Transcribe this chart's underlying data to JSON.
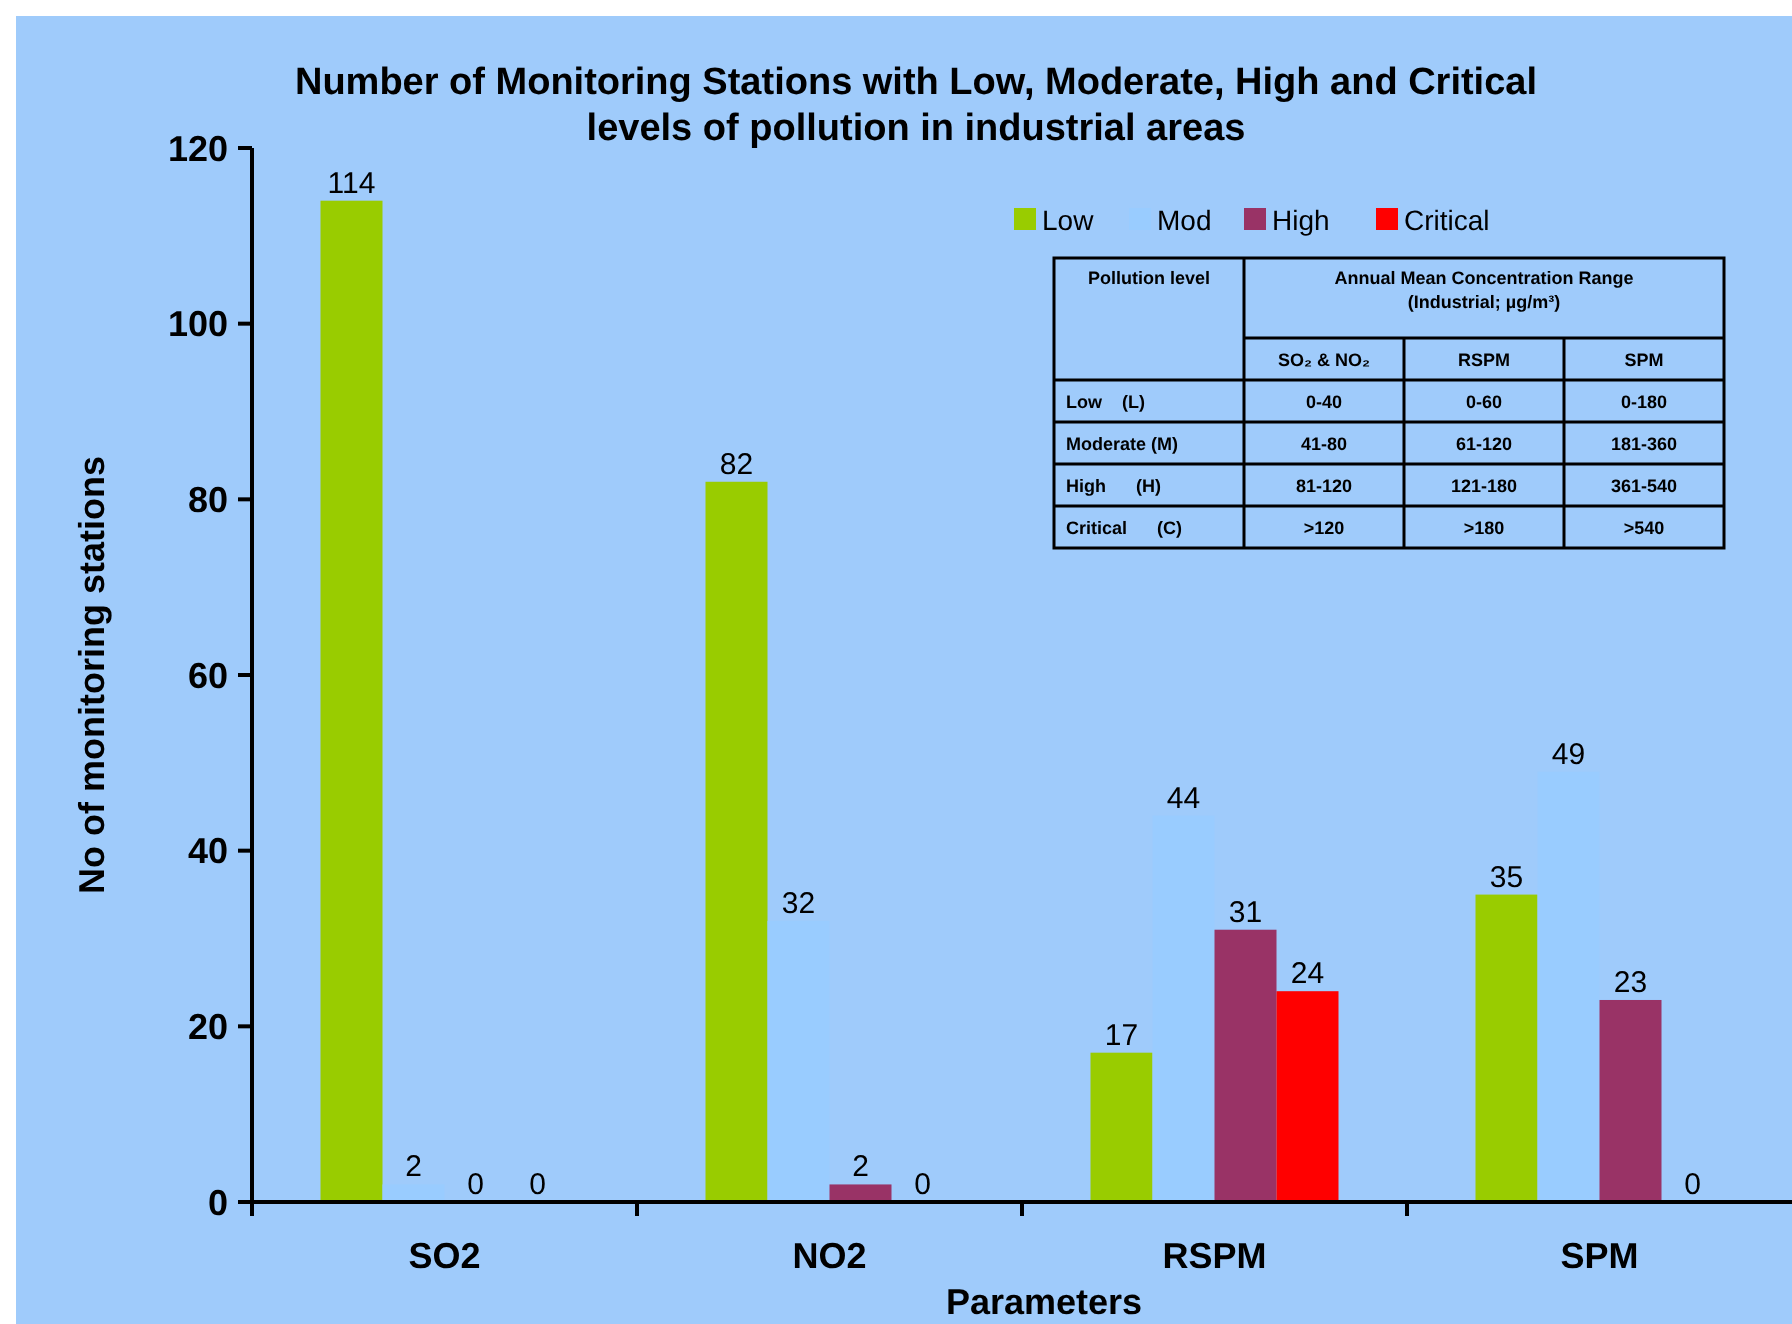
{
  "chart_data": {
    "type": "bar",
    "title": "Number of Monitoring Stations with Low, Moderate, High and Critical levels of pollution in industrial areas",
    "xlabel": "Parameters",
    "ylabel": "No of monitoring stations",
    "categories": [
      "SO2",
      "NO2",
      "RSPM",
      "SPM"
    ],
    "series": [
      {
        "name": "Low",
        "color": "#99cc00",
        "values": [
          114,
          82,
          17,
          35
        ]
      },
      {
        "name": "Mod",
        "color": "#99ccff",
        "values": [
          2,
          32,
          44,
          49
        ]
      },
      {
        "name": "High",
        "color": "#993366",
        "values": [
          0,
          2,
          31,
          23
        ]
      },
      {
        "name": "Critical",
        "color": "#ff0000",
        "values": [
          0,
          0,
          24,
          0
        ]
      }
    ],
    "ylim": [
      0,
      120
    ],
    "yticks": [
      0,
      20,
      40,
      60,
      80,
      100,
      120
    ],
    "data_labels": true,
    "legend": "top right",
    "grid": false,
    "annotations": [
      "Pollution level",
      "Annual Mean Concentration Range",
      "(Industrial; µg/m³)",
      "SO₂ & NO₂",
      "RSPM",
      "SPM",
      "Low    (L)",
      "0-40",
      "0-60",
      "0-180",
      "Moderate (M)",
      "41-80",
      "61-120",
      "181-360",
      "High      (H)",
      "81-120",
      "121-180",
      "361-540",
      "Critical      (C)",
      ">120",
      ">180",
      ">540"
    ]
  }
}
